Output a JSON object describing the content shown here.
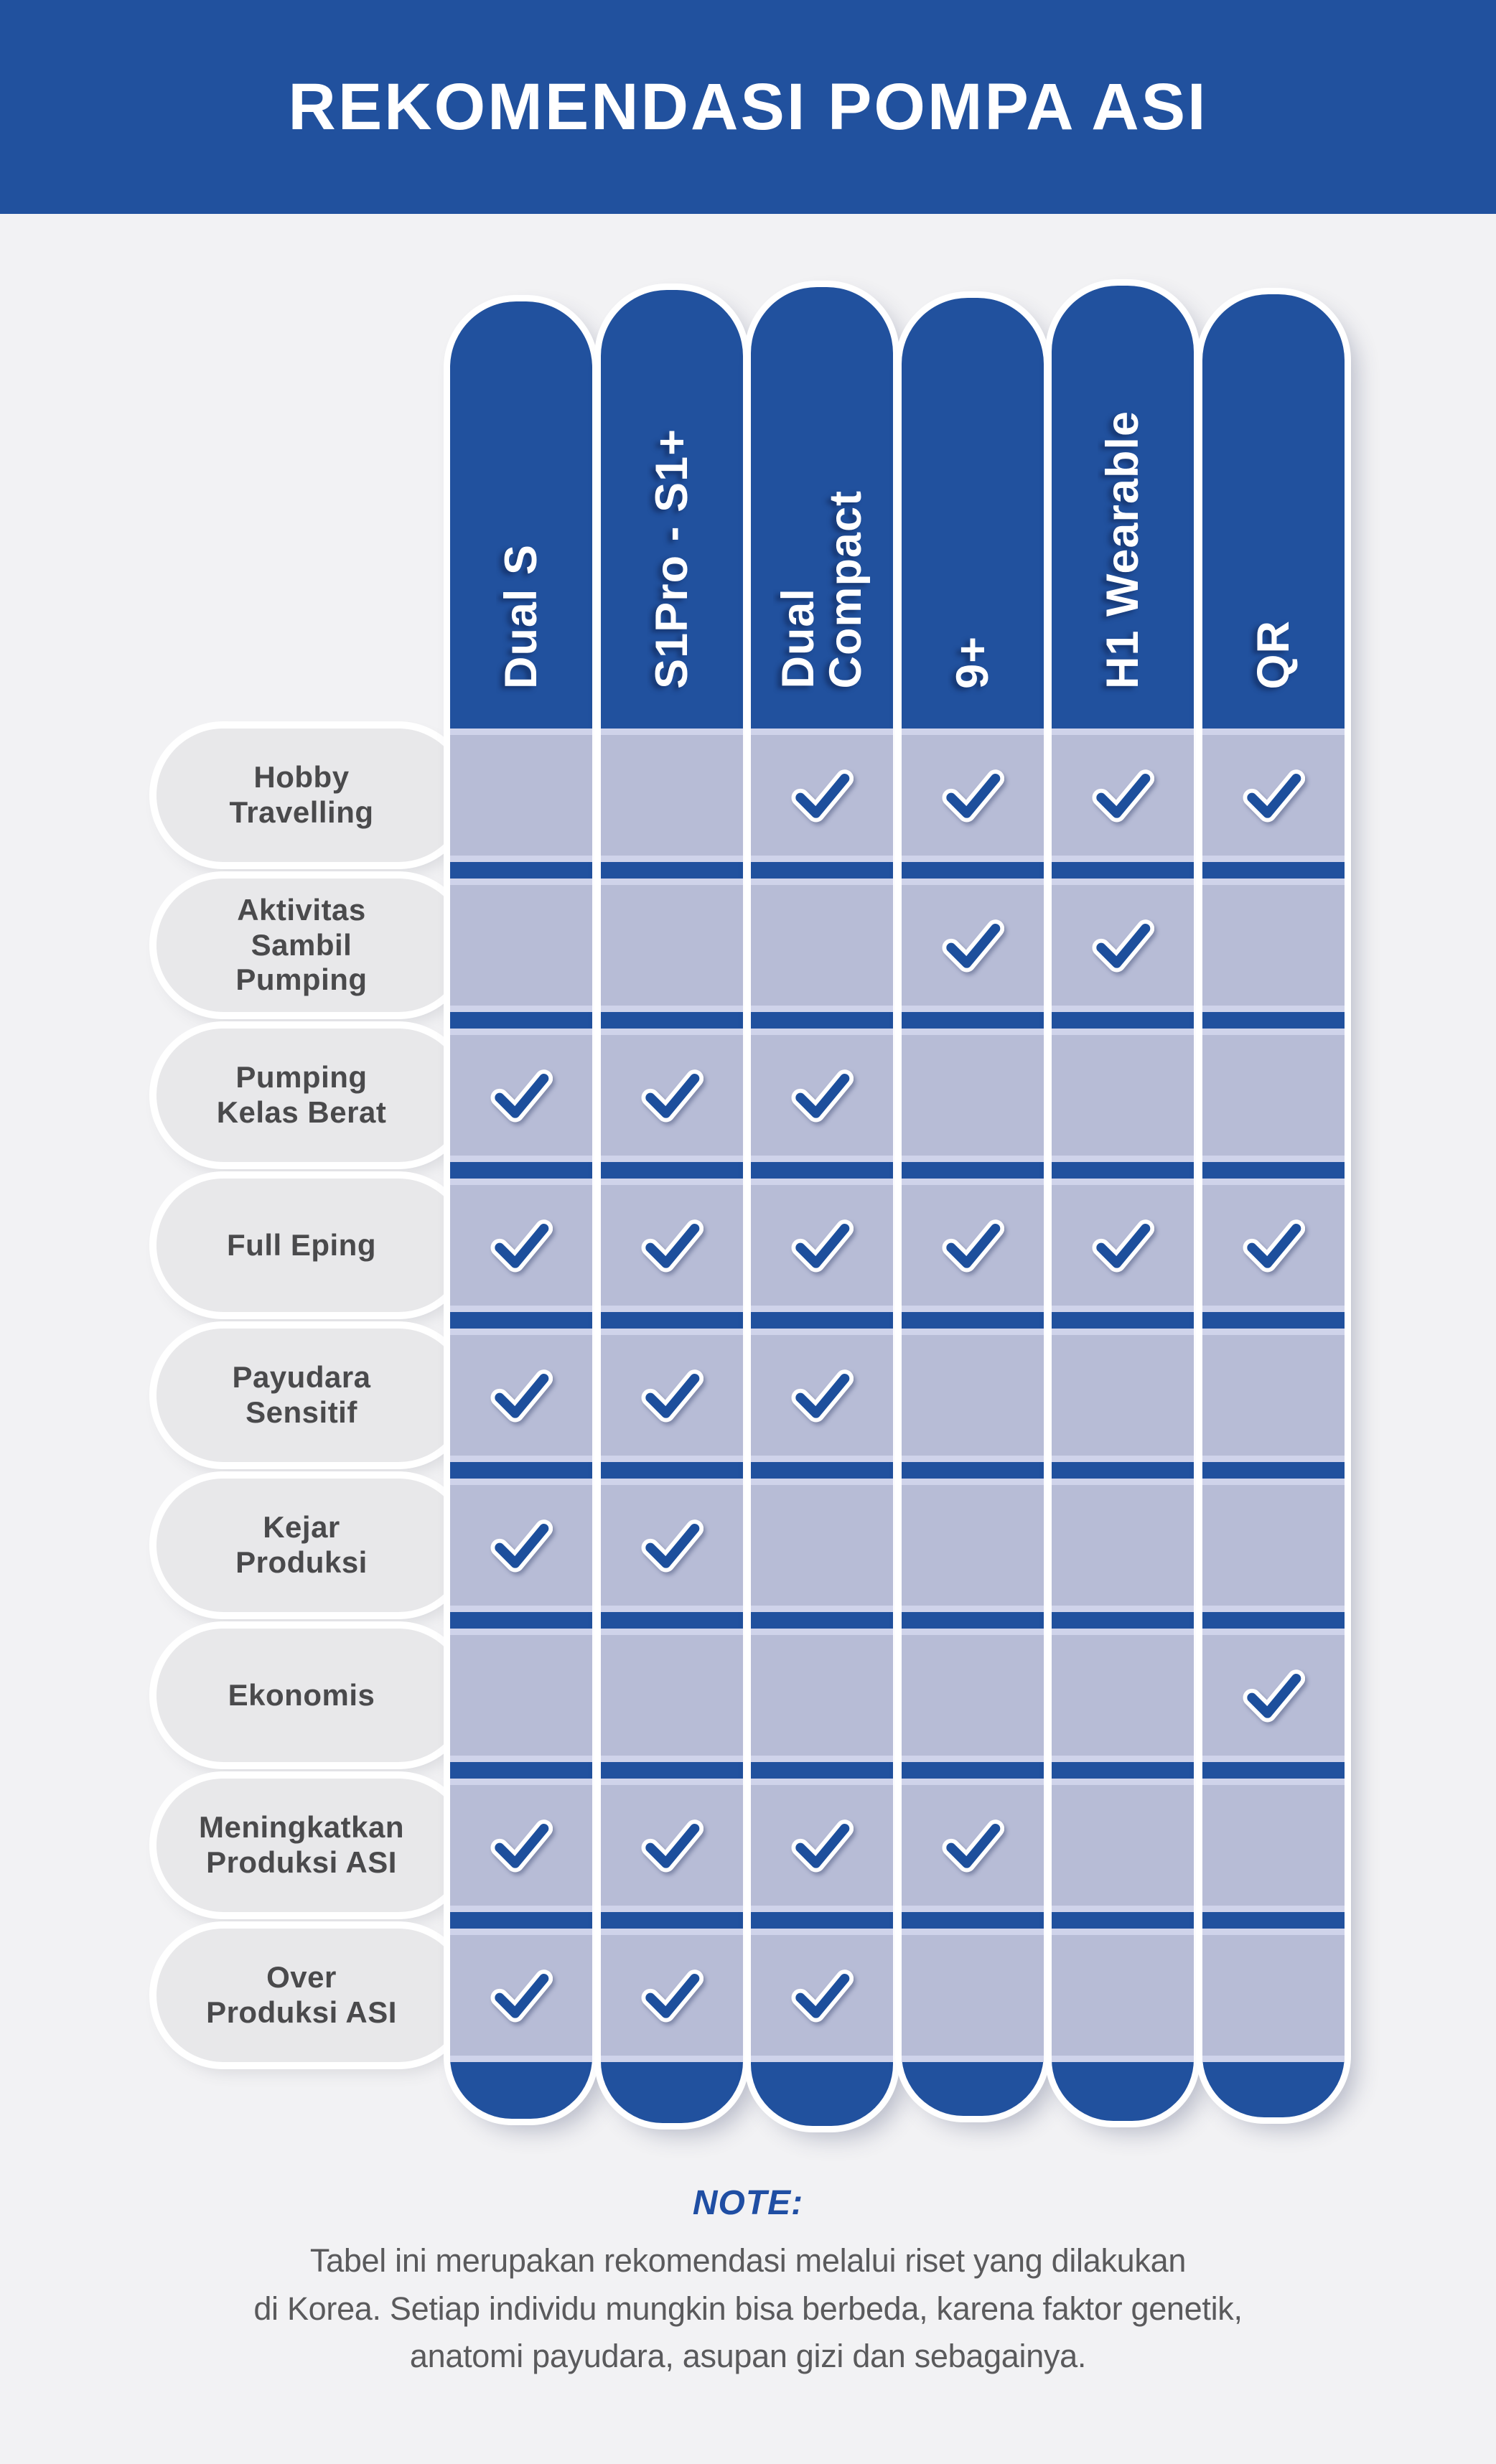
{
  "colors": {
    "brand_blue": "#21519E",
    "cell_lavender": "#B7BCD6",
    "cell_edge_light": "#CFD3EA",
    "row_pill_bg": "#E8E8EA",
    "row_label_text": "#4A4A4C",
    "check_blue": "#1D4F9C",
    "page_bg": "#F2F2F4",
    "note_heading_blue": "#1F4EA3",
    "note_text_gray": "#5A5A5C",
    "header_text": "#FFFFFF"
  },
  "header": {
    "title": "REKOMENDASI POMPA ASI"
  },
  "table": {
    "check_icon": "checkmark",
    "columns": [
      {
        "id": "dual-s",
        "lines": [
          "Dual S"
        ]
      },
      {
        "id": "s1pro-s1plus",
        "lines": [
          "S1Pro - S1+"
        ]
      },
      {
        "id": "dual-compact",
        "lines": [
          "Dual",
          "Compact"
        ]
      },
      {
        "id": "9plus",
        "lines": [
          "9+"
        ]
      },
      {
        "id": "h1-wearable",
        "lines": [
          "H1 Wearable"
        ]
      },
      {
        "id": "qr",
        "lines": [
          "QR"
        ]
      }
    ],
    "rows": [
      {
        "id": "hobby-travelling",
        "lines": [
          "Hobby",
          "Travelling"
        ],
        "checks": [
          0,
          0,
          1,
          1,
          1,
          1
        ]
      },
      {
        "id": "aktivitas-sambil-pumping",
        "lines": [
          "Aktivitas",
          "Sambil",
          "Pumping"
        ],
        "checks": [
          0,
          0,
          0,
          1,
          1,
          0
        ]
      },
      {
        "id": "pumping-kelas-berat",
        "lines": [
          "Pumping",
          "Kelas Berat"
        ],
        "checks": [
          1,
          1,
          1,
          0,
          0,
          0
        ]
      },
      {
        "id": "full-eping",
        "lines": [
          "Full Eping"
        ],
        "checks": [
          1,
          1,
          1,
          1,
          1,
          1
        ]
      },
      {
        "id": "payudara-sensitif",
        "lines": [
          "Payudara",
          "Sensitif"
        ],
        "checks": [
          1,
          1,
          1,
          0,
          0,
          0
        ]
      },
      {
        "id": "kejar-produksi",
        "lines": [
          "Kejar",
          "Produksi"
        ],
        "checks": [
          1,
          1,
          0,
          0,
          0,
          0
        ]
      },
      {
        "id": "ekonomis",
        "lines": [
          "Ekonomis"
        ],
        "checks": [
          0,
          0,
          0,
          0,
          0,
          1
        ]
      },
      {
        "id": "meningkatkan-produksi-asi",
        "lines": [
          "Meningkatkan",
          "Produksi ASI"
        ],
        "checks": [
          1,
          1,
          1,
          1,
          0,
          0
        ]
      },
      {
        "id": "over-produksi-asi",
        "lines": [
          "Over",
          "Produksi ASI"
        ],
        "checks": [
          1,
          1,
          1,
          0,
          0,
          0
        ]
      }
    ]
  },
  "chart_data": {
    "type": "table",
    "title": "REKOMENDASI POMPA ASI",
    "columns": [
      "Dual S",
      "S1Pro - S1+",
      "Dual Compact",
      "9+",
      "H1 Wearable",
      "QR"
    ],
    "rows": [
      "Hobby Travelling",
      "Aktivitas Sambil Pumping",
      "Pumping Kelas Berat",
      "Full Eping",
      "Payudara Sensitif",
      "Kejar Produksi",
      "Ekonomis",
      "Meningkatkan Produksi ASI",
      "Over Produksi ASI"
    ],
    "matrix": [
      [
        0,
        0,
        1,
        1,
        1,
        1
      ],
      [
        0,
        0,
        0,
        1,
        1,
        0
      ],
      [
        1,
        1,
        1,
        0,
        0,
        0
      ],
      [
        1,
        1,
        1,
        1,
        1,
        1
      ],
      [
        1,
        1,
        1,
        0,
        0,
        0
      ],
      [
        1,
        1,
        0,
        0,
        0,
        0
      ],
      [
        0,
        0,
        0,
        0,
        0,
        1
      ],
      [
        1,
        1,
        1,
        1,
        0,
        0
      ],
      [
        1,
        1,
        1,
        0,
        0,
        0
      ]
    ],
    "cell_symbol": "checkmark = recommended, empty = not recommended",
    "legend_position": "none",
    "grid": "blue column pills with lavender row bands"
  },
  "note": {
    "heading": "NOTE:",
    "lines": [
      "Tabel ini merupakan rekomendasi melalui riset yang dilakukan",
      "di Korea. Setiap individu mungkin bisa berbeda, karena faktor genetik,",
      "anatomi payudara, asupan gizi dan sebagainya."
    ]
  }
}
